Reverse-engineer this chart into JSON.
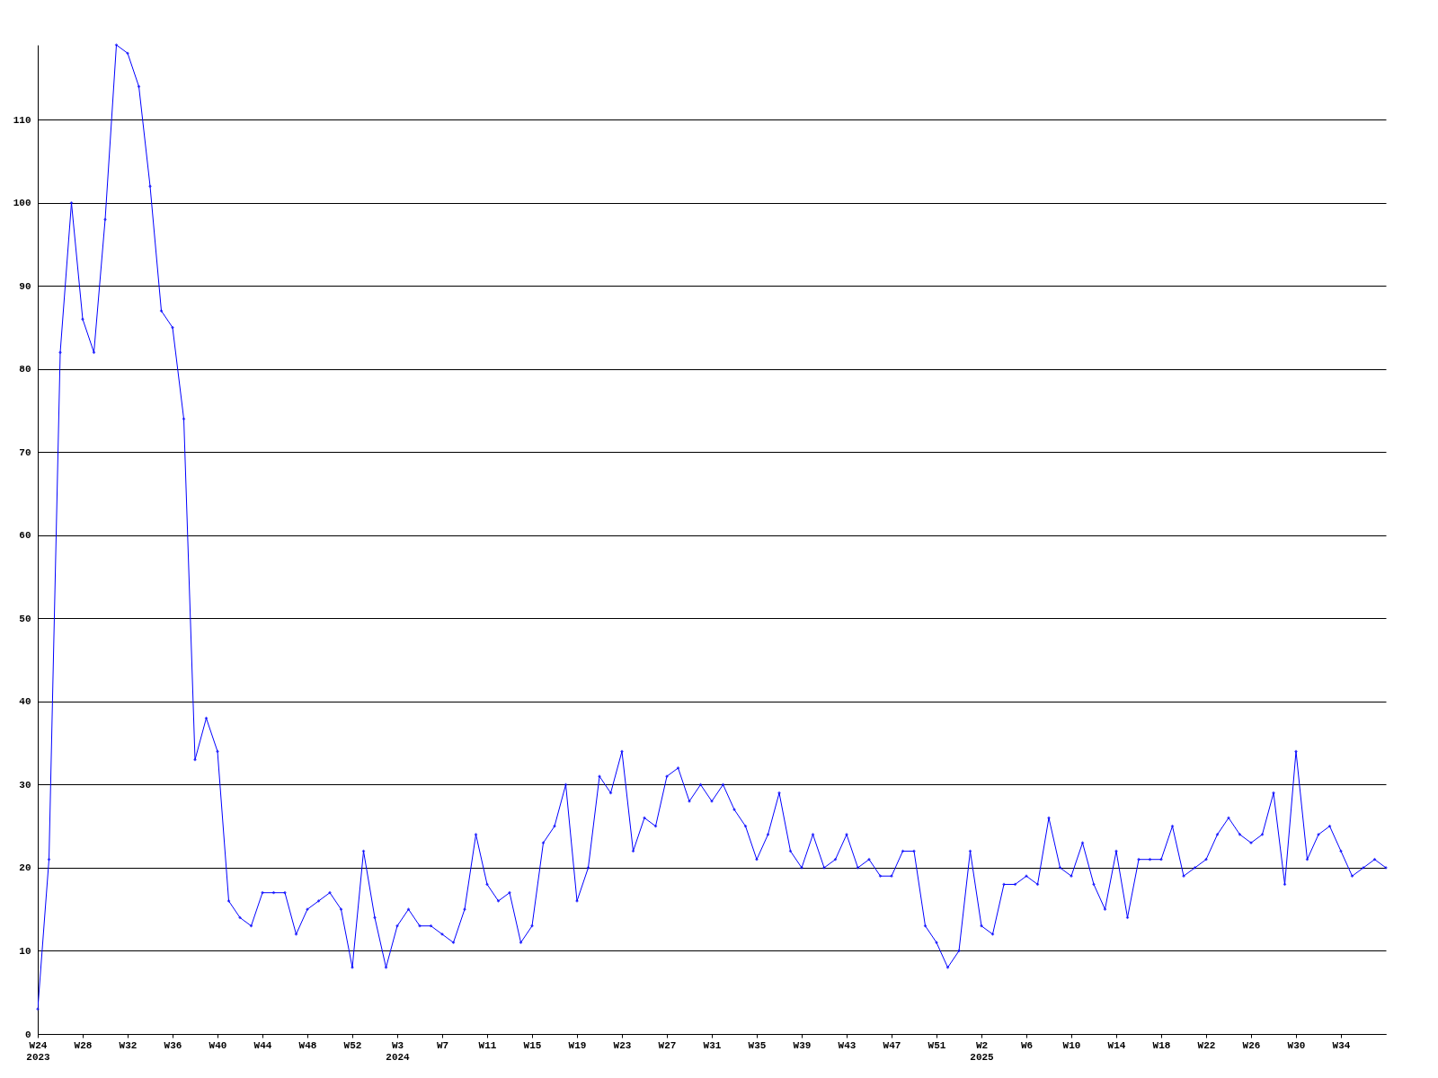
{
  "chart_data": {
    "type": "line",
    "categories": [
      "W24\n2023",
      null,
      null,
      null,
      "W28",
      null,
      null,
      null,
      "W32",
      null,
      null,
      null,
      "W36",
      null,
      null,
      null,
      "W40",
      null,
      null,
      null,
      "W44",
      null,
      null,
      null,
      "W48",
      null,
      null,
      null,
      "W52",
      null,
      null,
      null,
      "W3\n2024",
      null,
      null,
      null,
      "W7",
      null,
      null,
      null,
      "W11",
      null,
      null,
      null,
      "W15",
      null,
      null,
      null,
      "W19",
      null,
      null,
      null,
      "W23",
      null,
      null,
      null,
      "W27",
      null,
      null,
      null,
      "W31",
      null,
      null,
      null,
      "W35",
      null,
      null,
      null,
      "W39",
      null,
      null,
      null,
      "W43",
      null,
      null,
      null,
      "W47",
      null,
      null,
      null,
      "W51",
      null,
      null,
      null,
      "W2\n2025",
      null,
      null,
      null,
      "W6",
      null,
      null,
      null,
      "W10",
      null,
      null,
      null,
      "W14",
      null,
      null,
      null,
      "W18",
      null,
      null,
      null,
      "W22",
      null,
      null,
      null,
      "W26",
      null,
      null,
      null,
      "W30",
      null,
      null,
      null,
      "W34",
      null,
      null,
      null,
      null
    ],
    "series": [
      {
        "color": "#0000ff",
        "values": [
          3,
          21,
          82,
          100,
          86,
          82,
          98,
          119,
          118,
          114,
          102,
          87,
          85,
          74,
          33,
          38,
          34,
          16,
          14,
          13,
          17,
          17,
          17,
          12,
          15,
          16,
          17,
          15,
          8,
          22,
          14,
          8,
          13,
          15,
          13,
          13,
          12,
          11,
          15,
          24,
          18,
          16,
          17,
          11,
          13,
          23,
          25,
          30,
          16,
          20,
          31,
          29,
          34,
          22,
          26,
          25,
          31,
          32,
          28,
          30,
          28,
          30,
          27,
          25,
          21,
          24,
          29,
          22,
          20,
          24,
          20,
          21,
          24,
          20,
          21,
          19,
          19,
          22,
          22,
          13,
          11,
          8,
          10,
          22,
          13,
          12,
          18,
          18,
          19,
          18,
          26,
          20,
          19,
          23,
          18,
          15,
          22,
          14,
          21,
          21,
          21,
          25,
          19,
          20,
          21,
          24,
          26,
          24,
          23,
          24,
          29,
          18,
          34,
          21,
          24,
          25,
          22,
          19,
          20,
          21,
          20
        ]
      }
    ],
    "ylim": [
      0,
      119
    ],
    "yticks": [
      0,
      10,
      20,
      30,
      40,
      50,
      60,
      70,
      80,
      90,
      100,
      110
    ],
    "grid": "y",
    "marker": "diamond",
    "line_style": "solid"
  }
}
